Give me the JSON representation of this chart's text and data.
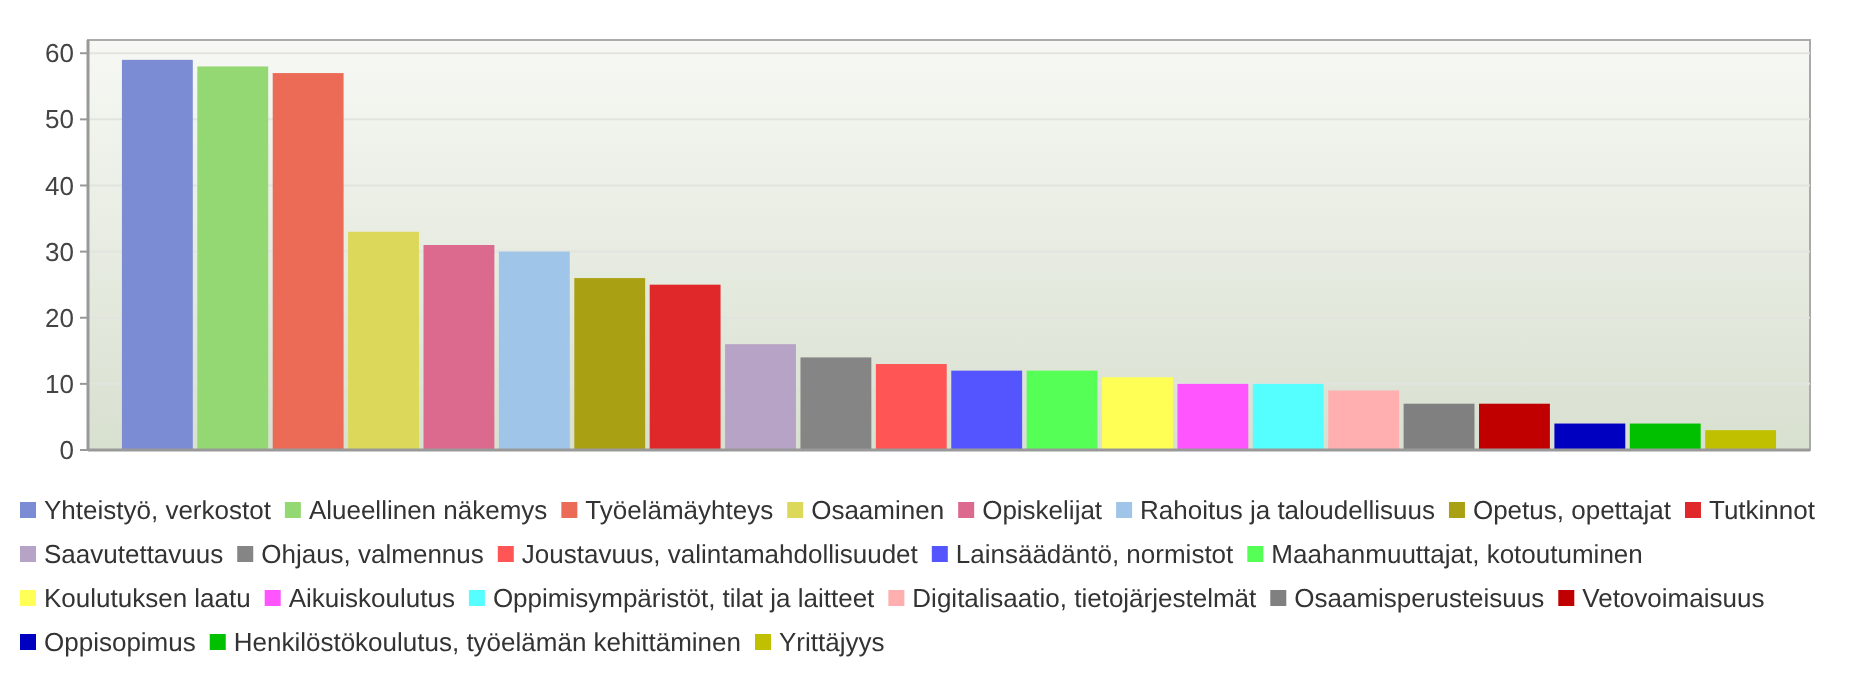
{
  "chart_data": {
    "type": "bar",
    "categories": [
      null,
      null,
      null,
      null,
      null,
      null,
      null,
      null,
      null,
      null,
      null,
      null,
      null,
      null,
      null,
      null,
      null,
      null,
      null,
      null,
      null,
      null
    ],
    "ylim": [
      0,
      62
    ],
    "yticks": [
      0,
      10,
      20,
      30,
      40,
      50,
      60
    ],
    "grid": "y",
    "legend": "bottom",
    "series": [
      {
        "name": "Yhteistyö, verkostot",
        "color": "#7b8bd4",
        "values": [
          59,
          null,
          null,
          null,
          null,
          null,
          null,
          null,
          null,
          null,
          null,
          null,
          null,
          null,
          null,
          null,
          null,
          null,
          null,
          null,
          null,
          null
        ]
      },
      {
        "name": "Alueellinen näkemys",
        "color": "#93d873",
        "values": [
          null,
          58,
          null,
          null,
          null,
          null,
          null,
          null,
          null,
          null,
          null,
          null,
          null,
          null,
          null,
          null,
          null,
          null,
          null,
          null,
          null,
          null
        ]
      },
      {
        "name": "Työelämäyhteys",
        "color": "#ec6b57",
        "values": [
          null,
          null,
          57,
          null,
          null,
          null,
          null,
          null,
          null,
          null,
          null,
          null,
          null,
          null,
          null,
          null,
          null,
          null,
          null,
          null,
          null,
          null
        ]
      },
      {
        "name": "Osaaminen",
        "color": "#dcd95a",
        "values": [
          null,
          null,
          null,
          33,
          null,
          null,
          null,
          null,
          null,
          null,
          null,
          null,
          null,
          null,
          null,
          null,
          null,
          null,
          null,
          null,
          null,
          null
        ]
      },
      {
        "name": "Opiskelijat",
        "color": "#dc6a8f",
        "values": [
          null,
          null,
          null,
          null,
          31,
          null,
          null,
          null,
          null,
          null,
          null,
          null,
          null,
          null,
          null,
          null,
          null,
          null,
          null,
          null,
          null,
          null
        ]
      },
      {
        "name": "Rahoitus ja taloudellisuus",
        "color": "#9fc6e8",
        "values": [
          null,
          null,
          null,
          null,
          null,
          30,
          null,
          null,
          null,
          null,
          null,
          null,
          null,
          null,
          null,
          null,
          null,
          null,
          null,
          null,
          null,
          null
        ]
      },
      {
        "name": "Opetus, opettajat",
        "color": "#aaa014",
        "values": [
          null,
          null,
          null,
          null,
          null,
          null,
          26,
          null,
          null,
          null,
          null,
          null,
          null,
          null,
          null,
          null,
          null,
          null,
          null,
          null,
          null,
          null
        ]
      },
      {
        "name": "Tutkinnot",
        "color": "#e0282b",
        "values": [
          null,
          null,
          null,
          null,
          null,
          null,
          null,
          25,
          null,
          null,
          null,
          null,
          null,
          null,
          null,
          null,
          null,
          null,
          null,
          null,
          null,
          null
        ]
      },
      {
        "name": "Saavutettavuus",
        "color": "#b7a3c5",
        "values": [
          null,
          null,
          null,
          null,
          null,
          null,
          null,
          null,
          16,
          null,
          null,
          null,
          null,
          null,
          null,
          null,
          null,
          null,
          null,
          null,
          null,
          null
        ]
      },
      {
        "name": "Ohjaus, valmennus",
        "color": "#858585",
        "values": [
          null,
          null,
          null,
          null,
          null,
          null,
          null,
          null,
          null,
          14,
          null,
          null,
          null,
          null,
          null,
          null,
          null,
          null,
          null,
          null,
          null,
          null
        ]
      },
      {
        "name": "Joustavuus, valintamahdollisuudet",
        "color": "#ff5555",
        "values": [
          null,
          null,
          null,
          null,
          null,
          null,
          null,
          null,
          null,
          null,
          13,
          null,
          null,
          null,
          null,
          null,
          null,
          null,
          null,
          null,
          null,
          null
        ]
      },
      {
        "name": "Lainsäädäntö, normistot",
        "color": "#5555ff",
        "values": [
          null,
          null,
          null,
          null,
          null,
          null,
          null,
          null,
          null,
          null,
          null,
          12,
          null,
          null,
          null,
          null,
          null,
          null,
          null,
          null,
          null,
          null
        ]
      },
      {
        "name": "Maahanmuuttajat, kotoutuminen",
        "color": "#55ff55",
        "values": [
          null,
          null,
          null,
          null,
          null,
          null,
          null,
          null,
          null,
          null,
          null,
          null,
          12,
          null,
          null,
          null,
          null,
          null,
          null,
          null,
          null,
          null
        ]
      },
      {
        "name": "Koulutuksen laatu",
        "color": "#ffff55",
        "values": [
          null,
          null,
          null,
          null,
          null,
          null,
          null,
          null,
          null,
          null,
          null,
          null,
          null,
          11,
          null,
          null,
          null,
          null,
          null,
          null,
          null,
          null
        ]
      },
      {
        "name": "Aikuiskoulutus",
        "color": "#ff55ff",
        "values": [
          null,
          null,
          null,
          null,
          null,
          null,
          null,
          null,
          null,
          null,
          null,
          null,
          null,
          null,
          10,
          null,
          null,
          null,
          null,
          null,
          null,
          null
        ]
      },
      {
        "name": "Oppimisympäristöt, tilat ja laitteet",
        "color": "#55ffff",
        "values": [
          null,
          null,
          null,
          null,
          null,
          null,
          null,
          null,
          null,
          null,
          null,
          null,
          null,
          null,
          null,
          10,
          null,
          null,
          null,
          null,
          null,
          null
        ]
      },
      {
        "name": "Digitalisaatio, tietojärjestelmät",
        "color": "#ffafaf",
        "values": [
          null,
          null,
          null,
          null,
          null,
          null,
          null,
          null,
          null,
          null,
          null,
          null,
          null,
          null,
          null,
          null,
          9,
          null,
          null,
          null,
          null,
          null
        ]
      },
      {
        "name": "Osaamisperusteisuus",
        "color": "#808080",
        "values": [
          null,
          null,
          null,
          null,
          null,
          null,
          null,
          null,
          null,
          null,
          null,
          null,
          null,
          null,
          null,
          null,
          null,
          7,
          null,
          null,
          null,
          null
        ]
      },
      {
        "name": "Vetovoimaisuus",
        "color": "#c00000",
        "values": [
          null,
          null,
          null,
          null,
          null,
          null,
          null,
          null,
          null,
          null,
          null,
          null,
          null,
          null,
          null,
          null,
          null,
          null,
          7,
          null,
          null,
          null
        ]
      },
      {
        "name": "Oppisopimus",
        "color": "#0000c0",
        "values": [
          null,
          null,
          null,
          null,
          null,
          null,
          null,
          null,
          null,
          null,
          null,
          null,
          null,
          null,
          null,
          null,
          null,
          null,
          null,
          4,
          null,
          null
        ]
      },
      {
        "name": "Henkilöstökoulutus, työelämän kehittäminen",
        "color": "#00c000",
        "values": [
          null,
          null,
          null,
          null,
          null,
          null,
          null,
          null,
          null,
          null,
          null,
          null,
          null,
          null,
          null,
          null,
          null,
          null,
          null,
          null,
          4,
          null
        ]
      },
      {
        "name": "Yrittäjyys",
        "color": "#c0c000",
        "values": [
          null,
          null,
          null,
          null,
          null,
          null,
          null,
          null,
          null,
          null,
          null,
          null,
          null,
          null,
          null,
          null,
          null,
          null,
          null,
          null,
          null,
          3
        ]
      }
    ]
  }
}
